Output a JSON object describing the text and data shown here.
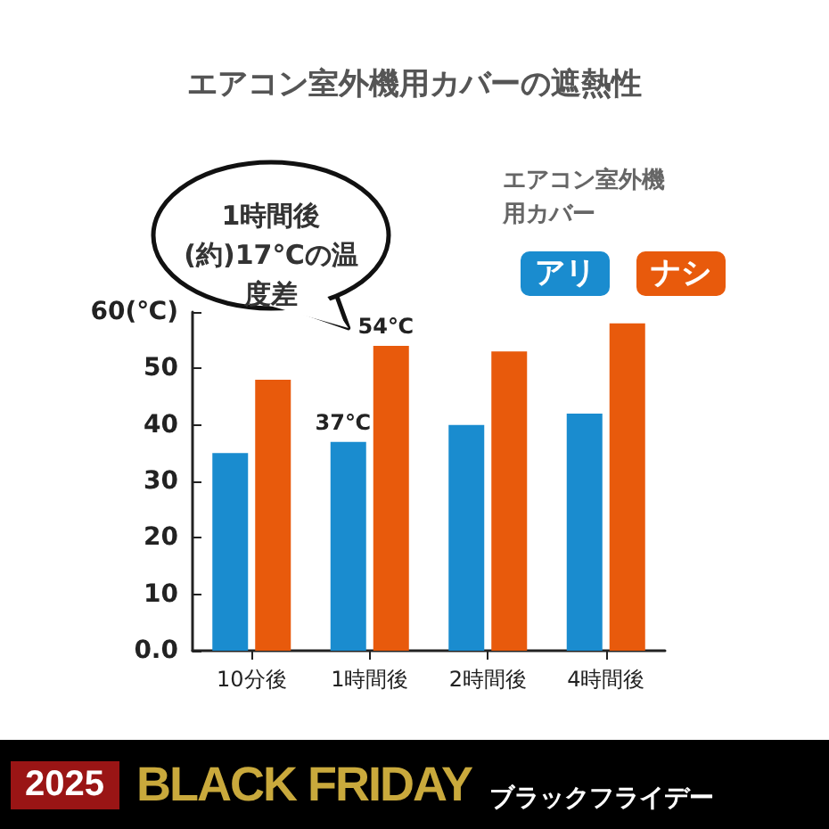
{
  "chart_data": {
    "type": "bar",
    "title": "エアコン室外機用カバーの遮熱性",
    "categories": [
      "10分後",
      "1時間後",
      "2時間後",
      "4時間後"
    ],
    "series": [
      {
        "name": "アリ",
        "color": "#1a8ccf",
        "values": [
          35,
          37,
          40,
          42
        ],
        "value_labels": [
          null,
          "37℃",
          null,
          null
        ]
      },
      {
        "name": "ナシ",
        "color": "#e85a0c",
        "values": [
          48,
          54,
          53,
          58
        ],
        "value_labels": [
          null,
          "54℃",
          null,
          null
        ]
      }
    ],
    "legend_title": "エアコン室外機用カバー",
    "legend": "top right",
    "ylim": [
      0,
      60
    ],
    "yticks": [
      {
        "value": 0,
        "label": "0.0"
      },
      10,
      20,
      30,
      40,
      50,
      {
        "value": 60,
        "label": "60(℃)"
      }
    ],
    "grid": false,
    "annotations": [
      {
        "text": "1時間後(約)17℃の温度差",
        "x": "1時間後",
        "y": 54
      },
      "2025",
      "BLACK FRIDAY",
      "ブラックフライデー"
    ]
  }
}
